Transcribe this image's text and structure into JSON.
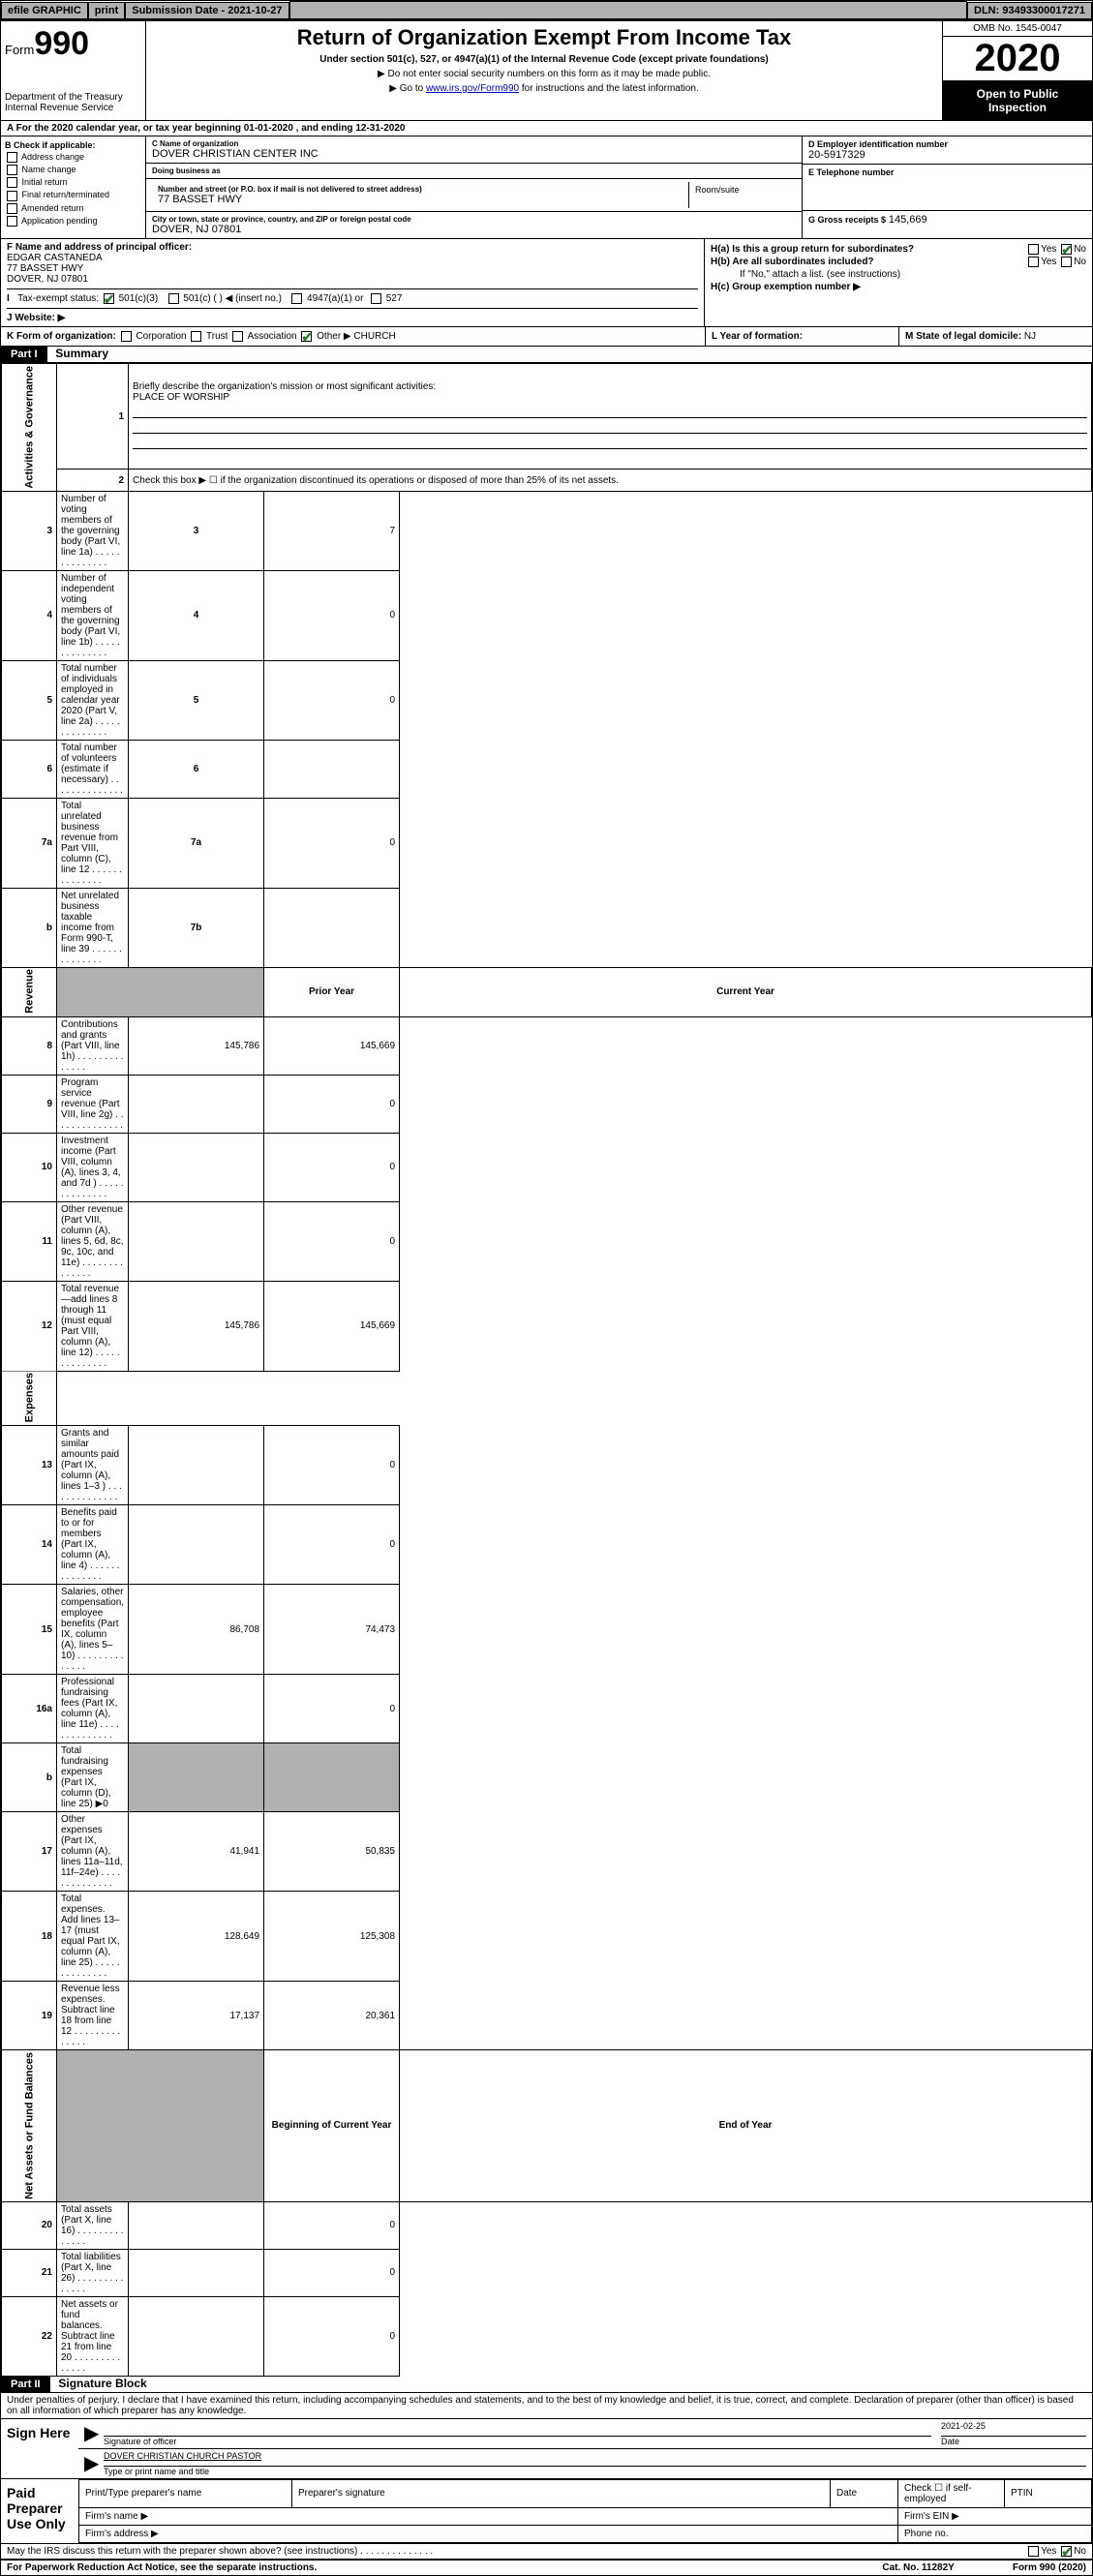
{
  "topbar": {
    "efile": "efile GRAPHIC",
    "print": "print",
    "submission_label": "Submission Date - 2021-10-27",
    "dln": "DLN: 93493300017271"
  },
  "header": {
    "form_label": "Form",
    "form_number": "990",
    "dept": "Department of the Treasury\nInternal Revenue Service",
    "title": "Return of Organization Exempt From Income Tax",
    "subtitle": "Under section 501(c), 527, or 4947(a)(1) of the Internal Revenue Code (except private foundations)",
    "note1": "▶ Do not enter social security numbers on this form as it may be made public.",
    "note2_pre": "▶ Go to ",
    "note2_link": "www.irs.gov/Form990",
    "note2_post": " for instructions and the latest information.",
    "omb": "OMB No. 1545-0047",
    "year": "2020",
    "open_public": "Open to Public Inspection"
  },
  "row_a": "A For the 2020 calendar year, or tax year beginning 01-01-2020    , and ending 12-31-2020",
  "box_b": {
    "header": "B Check if applicable:",
    "items": [
      "Address change",
      "Name change",
      "Initial return",
      "Final return/terminated",
      "Amended return",
      "Application pending"
    ]
  },
  "box_c": {
    "name_label": "C Name of organization",
    "name": "DOVER CHRISTIAN CENTER INC",
    "dba_label": "Doing business as",
    "dba": "",
    "addr_label": "Number and street (or P.O. box if mail is not delivered to street address)",
    "addr": "77 BASSET HWY",
    "room_label": "Room/suite",
    "city_label": "City or town, state or province, country, and ZIP or foreign postal code",
    "city": "DOVER, NJ  07801"
  },
  "box_d": {
    "label": "D Employer identification number",
    "val": "20-5917329"
  },
  "box_e": {
    "label": "E Telephone number",
    "val": ""
  },
  "box_g": {
    "label": "G Gross receipts $",
    "val": "145,669"
  },
  "box_f": {
    "label": "F  Name and address of principal officer:",
    "name": "EDGAR CASTANEDA",
    "addr1": "77 BASSET HWY",
    "addr2": "DOVER, NJ  07801"
  },
  "box_h": {
    "a_label": "H(a)  Is this a group return for subordinates?",
    "b_label": "H(b)  Are all subordinates included?",
    "b_note": "If \"No,\" attach a list. (see instructions)",
    "c_label": "H(c)  Group exemption number ▶",
    "yes": "Yes",
    "no": "No"
  },
  "row_i": {
    "label": "Tax-exempt status:",
    "o1": "501(c)(3)",
    "o2": "501(c) (   ) ◀ (insert no.)",
    "o3": "4947(a)(1) or",
    "o4": "527"
  },
  "row_j": {
    "label": "J   Website: ▶",
    "val": ""
  },
  "row_k": {
    "label": "K Form of organization:",
    "o1": "Corporation",
    "o2": "Trust",
    "o3": "Association",
    "o4": "Other ▶",
    "other_val": "CHURCH",
    "l_label": "L Year of formation:",
    "l_val": "",
    "m_label": "M State of legal domicile:",
    "m_val": "NJ"
  },
  "part1": {
    "hdr": "Part I",
    "title": "Summary",
    "q1": "Briefly describe the organization's mission or most significant activities:",
    "q1_val": "PLACE OF WORSHIP",
    "q2": "Check this box ▶ ☐  if the organization discontinued its operations or disposed of more than 25% of its net assets.",
    "rows_gov": [
      {
        "n": "3",
        "d": "Number of voting members of the governing body (Part VI, line 1a)",
        "box": "3",
        "v": "7"
      },
      {
        "n": "4",
        "d": "Number of independent voting members of the governing body (Part VI, line 1b)",
        "box": "4",
        "v": "0"
      },
      {
        "n": "5",
        "d": "Total number of individuals employed in calendar year 2020 (Part V, line 2a)",
        "box": "5",
        "v": "0"
      },
      {
        "n": "6",
        "d": "Total number of volunteers (estimate if necessary)",
        "box": "6",
        "v": ""
      },
      {
        "n": "7a",
        "d": "Total unrelated business revenue from Part VIII, column (C), line 12",
        "box": "7a",
        "v": "0"
      },
      {
        "n": "b",
        "d": "Net unrelated business taxable income from Form 990-T, line 39",
        "box": "7b",
        "v": ""
      }
    ],
    "col_prior": "Prior Year",
    "col_current": "Current Year",
    "rows_rev": [
      {
        "n": "8",
        "d": "Contributions and grants (Part VIII, line 1h)",
        "p": "145,786",
        "c": "145,669"
      },
      {
        "n": "9",
        "d": "Program service revenue (Part VIII, line 2g)",
        "p": "",
        "c": "0"
      },
      {
        "n": "10",
        "d": "Investment income (Part VIII, column (A), lines 3, 4, and 7d )",
        "p": "",
        "c": "0"
      },
      {
        "n": "11",
        "d": "Other revenue (Part VIII, column (A), lines 5, 6d, 8c, 9c, 10c, and 11e)",
        "p": "",
        "c": "0"
      },
      {
        "n": "12",
        "d": "Total revenue—add lines 8 through 11 (must equal Part VIII, column (A), line 12)",
        "p": "145,786",
        "c": "145,669"
      }
    ],
    "rows_exp": [
      {
        "n": "13",
        "d": "Grants and similar amounts paid (Part IX, column (A), lines 1–3 )",
        "p": "",
        "c": "0"
      },
      {
        "n": "14",
        "d": "Benefits paid to or for members (Part IX, column (A), line 4)",
        "p": "",
        "c": "0"
      },
      {
        "n": "15",
        "d": "Salaries, other compensation, employee benefits (Part IX, column (A), lines 5–10)",
        "p": "86,708",
        "c": "74,473"
      },
      {
        "n": "16a",
        "d": "Professional fundraising fees (Part IX, column (A), line 11e)",
        "p": "",
        "c": "0"
      },
      {
        "n": "b",
        "d": "Total fundraising expenses (Part IX, column (D), line 25) ▶0",
        "p": "shade",
        "c": "shade"
      },
      {
        "n": "17",
        "d": "Other expenses (Part IX, column (A), lines 11a–11d, 11f–24e)",
        "p": "41,941",
        "c": "50,835"
      },
      {
        "n": "18",
        "d": "Total expenses. Add lines 13–17 (must equal Part IX, column (A), line 25)",
        "p": "128,649",
        "c": "125,308"
      },
      {
        "n": "19",
        "d": "Revenue less expenses. Subtract line 18 from line 12",
        "p": "17,137",
        "c": "20,361"
      }
    ],
    "col_begin": "Beginning of Current Year",
    "col_end": "End of Year",
    "rows_net": [
      {
        "n": "20",
        "d": "Total assets (Part X, line 16)",
        "p": "",
        "c": "0"
      },
      {
        "n": "21",
        "d": "Total liabilities (Part X, line 26)",
        "p": "",
        "c": "0"
      },
      {
        "n": "22",
        "d": "Net assets or fund balances. Subtract line 21 from line 20",
        "p": "",
        "c": "0"
      }
    ],
    "vtabs": {
      "gov": "Activities & Governance",
      "rev": "Revenue",
      "exp": "Expenses",
      "net": "Net Assets or Fund Balances"
    }
  },
  "part2": {
    "hdr": "Part II",
    "title": "Signature Block",
    "penalty": "Under penalties of perjury, I declare that I have examined this return, including accompanying schedules and statements, and to the best of my knowledge and belief, it is true, correct, and complete. Declaration of preparer (other than officer) is based on all information of which preparer has any knowledge.",
    "sign_here": "Sign Here",
    "sig_officer": "Signature of officer",
    "sig_date": "2021-02-25",
    "date_label": "Date",
    "type_name": "DOVER CHRISTIAN CHURCH  PASTOR",
    "type_label": "Type or print name and title",
    "paid": "Paid Preparer Use Only",
    "prep_name": "Print/Type preparer's name",
    "prep_sig": "Preparer's signature",
    "prep_date": "Date",
    "check_self": "Check ☐ if self-employed",
    "ptin": "PTIN",
    "firm_name": "Firm's name   ▶",
    "firm_ein": "Firm's EIN ▶",
    "firm_addr": "Firm's address ▶",
    "phone": "Phone no.",
    "discuss": "May the IRS discuss this return with the preparer shown above? (see instructions)",
    "yes": "Yes",
    "no": "No"
  },
  "footer": {
    "pra": "For Paperwork Reduction Act Notice, see the separate instructions.",
    "cat": "Cat. No. 11282Y",
    "form": "Form 990 (2020)"
  }
}
